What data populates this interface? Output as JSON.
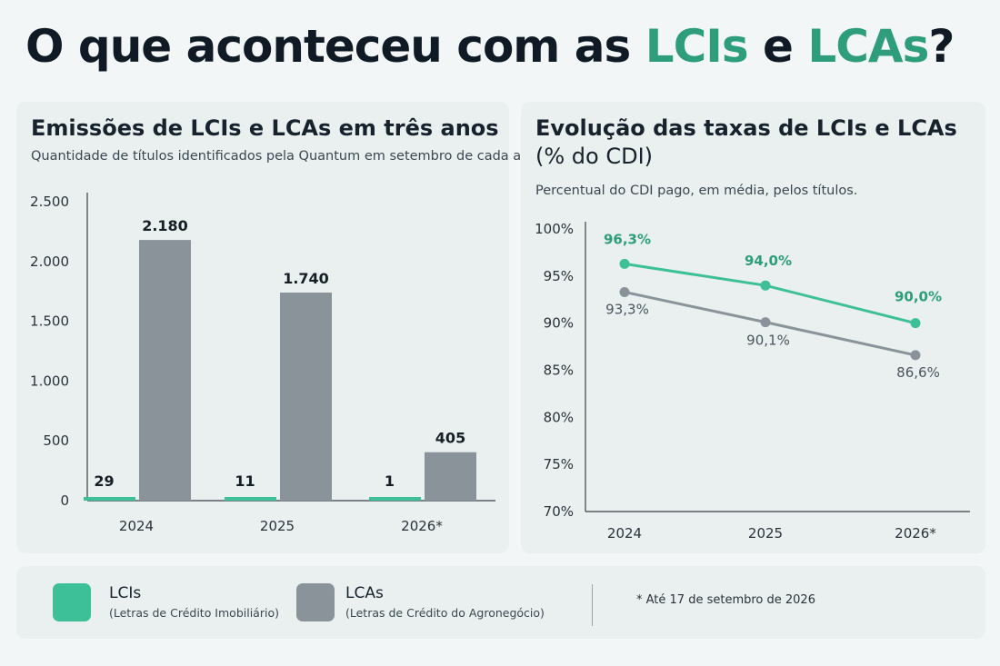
{
  "page": {
    "title_prefix": "O que aconteceu com as ",
    "title_hl1": "LCIs",
    "title_mid": " e ",
    "title_hl2": "LCAs",
    "title_suffix": "?"
  },
  "colors": {
    "lci": "#3dbf97",
    "lca": "#8b939a",
    "accent_text": "#2d9d7c"
  },
  "chart_data": [
    {
      "type": "bar",
      "title": "Emissões de LCIs e LCAs em três anos",
      "subtitle": "Quantidade de títulos identificados pela Quantum em setembro de cada ano.",
      "categories": [
        "2024",
        "2025",
        "2026*"
      ],
      "series": [
        {
          "name": "LCIs",
          "values": [
            29,
            11,
            1
          ],
          "value_labels": [
            "29",
            "11",
            "1"
          ]
        },
        {
          "name": "LCAs",
          "values": [
            2180,
            1740,
            405
          ],
          "value_labels": [
            "2.180",
            "1.740",
            "405"
          ]
        }
      ],
      "ylim": [
        0,
        2500
      ],
      "yticks": [
        0,
        500,
        1000,
        1500,
        2000,
        2500
      ],
      "ytick_labels": [
        "0",
        "500",
        "1.000",
        "1.500",
        "2.000",
        "2.500"
      ],
      "grid": false
    },
    {
      "type": "line",
      "title": "Evolução das taxas de LCIs e LCAs",
      "title_line2": "(% do CDI)",
      "subtitle": "Percentual do CDI pago, em média, pelos títulos.",
      "categories": [
        "2024",
        "2025",
        "2026*"
      ],
      "series": [
        {
          "name": "LCIs",
          "values": [
            96.3,
            94.0,
            90.0
          ],
          "value_labels": [
            "96,3%",
            "94,0%",
            "90,0%"
          ]
        },
        {
          "name": "LCAs",
          "values": [
            93.3,
            90.1,
            86.6
          ],
          "value_labels": [
            "93,3%",
            "90,1%",
            "86,6%"
          ]
        }
      ],
      "ylim": [
        70,
        100
      ],
      "yticks": [
        70,
        75,
        80,
        85,
        90,
        95,
        100
      ],
      "ytick_labels": [
        "70%",
        "75%",
        "80%",
        "85%",
        "90%",
        "95%",
        "100%"
      ],
      "grid": false
    }
  ],
  "legend": {
    "lci_name": "LCIs",
    "lci_desc": "(Letras de Crédito Imobiliário)",
    "lca_name": "LCAs",
    "lca_desc": "(Letras de Crédito do Agronegócio)",
    "footnote": "*  Até 17 de setembro de 2026"
  }
}
